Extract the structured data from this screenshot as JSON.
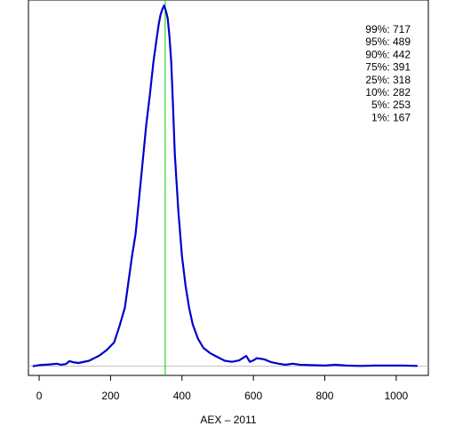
{
  "chart_data": {
    "type": "line",
    "title": "",
    "xlabel": "AEX – 2011",
    "ylabel": "",
    "xlim": [
      -30,
      1090
    ],
    "ylim": [
      -0.0025,
      0.1
    ],
    "x_ticks": [
      0,
      200,
      400,
      600,
      800,
      1000
    ],
    "x_tick_labels": [
      "0",
      "200",
      "400",
      "600",
      "800",
      "1000"
    ],
    "y_axis_shown": false,
    "grid": false,
    "baseline_y": 0,
    "vertical_line_x": 353,
    "colors": {
      "density": "#0000cc",
      "vertical_line": "#00cc00",
      "baseline": "#bfbfbf",
      "axis": "#000000"
    },
    "series": [
      {
        "x": [
          -18,
          0,
          30,
          50,
          60,
          75,
          85,
          95,
          110,
          140,
          170,
          190,
          210,
          225,
          240,
          250,
          260,
          270,
          280,
          290,
          300,
          310,
          320,
          330,
          335,
          340,
          345,
          350,
          355,
          360,
          365,
          370,
          375,
          380,
          390,
          400,
          410,
          420,
          430,
          445,
          460,
          480,
          500,
          520,
          540,
          560,
          580,
          590,
          600,
          610,
          630,
          650,
          670,
          690,
          710,
          730,
          760,
          800,
          830,
          860,
          900,
          940,
          980,
          1020,
          1060
        ],
        "y": [
          0,
          0.0003,
          0.0005,
          0.0007,
          0.0004,
          0.0006,
          0.0014,
          0.0011,
          0.0009,
          0.0015,
          0.003,
          0.0045,
          0.0065,
          0.011,
          0.016,
          0.023,
          0.03,
          0.036,
          0.046,
          0.056,
          0.066,
          0.074,
          0.083,
          0.09,
          0.0935,
          0.096,
          0.0975,
          0.0985,
          0.097,
          0.095,
          0.09,
          0.083,
          0.071,
          0.058,
          0.042,
          0.03,
          0.022,
          0.016,
          0.0115,
          0.0075,
          0.005,
          0.0035,
          0.0025,
          0.0015,
          0.0012,
          0.0016,
          0.0028,
          0.0012,
          0.0016,
          0.0022,
          0.0019,
          0.0011,
          0.0007,
          0.0004,
          0.0007,
          0.0004,
          0.0003,
          0.0002,
          0.0004,
          0.0002,
          0.0001,
          0.0002,
          0.0002,
          0.0002,
          0.0001
        ]
      }
    ],
    "annotations": [
      "99%: 717",
      "95%: 489",
      "90%: 442",
      "75%: 391",
      "25%: 318",
      "10%: 282",
      "5%: 253",
      "1%: 167"
    ]
  }
}
